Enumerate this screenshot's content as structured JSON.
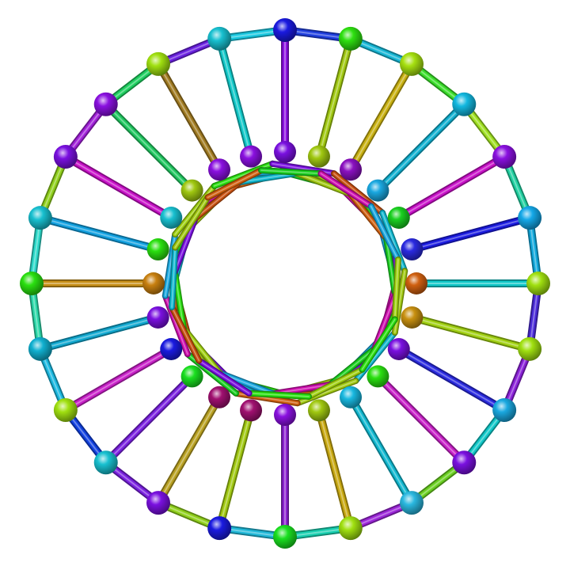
{
  "model": {
    "outer_vertex_count": 24,
    "inner_vertex_count": 24,
    "outer_ring_colors": [
      "#1f3fe0",
      "#16b7d6",
      "#3adf2a",
      "#9fe020",
      "#1fd0a0",
      "#10a8dc",
      "#4a2ad8",
      "#8a20d8",
      "#10c8c8",
      "#6ad020",
      "#9b25d8",
      "#18d0b0",
      "#1fb8d8",
      "#8fd01a",
      "#7a20e0",
      "#1040e0",
      "#1ab8e0",
      "#2ad8a8",
      "#2ad8c8",
      "#8fd01a",
      "#a020d8",
      "#1fd060",
      "#6a20e0",
      "#18c8e0"
    ],
    "outer_node_colors": [
      "#1a1ae0",
      "#2ee010",
      "#a6e010",
      "#12b8e0",
      "#8a10e0",
      "#14a8e8",
      "#a0e010",
      "#a0e010",
      "#1aa8e0",
      "#7a10e0",
      "#2ab8e0",
      "#a0e010",
      "#1ae020",
      "#1a1ae0",
      "#7a10e0",
      "#18c0d0",
      "#a0e010",
      "#10b0d0",
      "#2ae010",
      "#18c0d0",
      "#7a10e0",
      "#8a10e0",
      "#a0e010",
      "#18c0d0"
    ],
    "spoke_colors": [
      "#8a10e0",
      "#a0c810",
      "#c8b010",
      "#10b0d0",
      "#c810c8",
      "#1a1ae0",
      "#10c8c8",
      "#a0d010",
      "#2a2ae0",
      "#c820c8",
      "#10b8d0",
      "#c8a810",
      "#8a20d0",
      "#a0c810",
      "#b8a020",
      "#7a20e0",
      "#c820c8",
      "#10a8d0",
      "#c89018",
      "#10a0e0",
      "#c810c8",
      "#20c860",
      "#a07a20",
      "#10c8c8"
    ],
    "inner_node_colors": [
      "#7a10e0",
      "#a0c810",
      "#8a10c0",
      "#1aa8e0",
      "#1ad020",
      "#2a2ae0",
      "#d06010",
      "#c89010",
      "#7a10e0",
      "#2ae010",
      "#18b8e0",
      "#a0c810",
      "#8a10e0",
      "#a01070",
      "#a01070",
      "#1ae020",
      "#1a1ae0",
      "#7a10e0",
      "#c88010",
      "#2ae010",
      "#18c0d0",
      "#a0c810",
      "#8a10e0",
      "#8a10e0"
    ],
    "inner_ring_colors": [
      "#d010b0",
      "#1aa8e0",
      "#a0d010",
      "#2ae010",
      "#7a10e0",
      "#c85010",
      "#10b8d0",
      "#a0c810",
      "#d06010",
      "#1ad020"
    ]
  }
}
